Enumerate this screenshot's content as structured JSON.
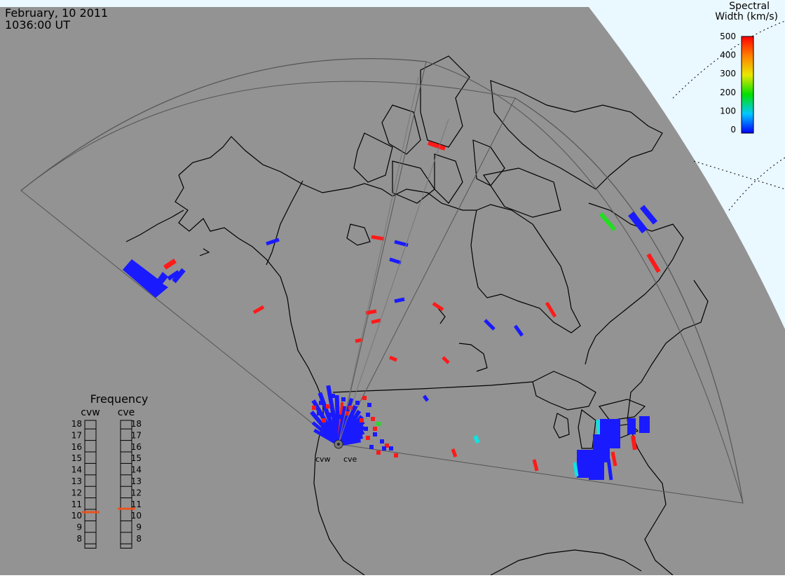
{
  "header": {
    "date": "February, 10 2011",
    "time": "1036:00 UT"
  },
  "colorbar": {
    "title_line1": "Spectral",
    "title_line2": "Width (km/s)",
    "ticks": [
      "500",
      "400",
      "300",
      "200",
      "100",
      "0"
    ]
  },
  "frequency_panel": {
    "title": "Frequency",
    "left_label": "cvw",
    "right_label": "cve",
    "levels": [
      "18",
      "17",
      "16",
      "15",
      "14",
      "13",
      "12",
      "11",
      "10",
      "9",
      "8"
    ],
    "cvw_value": 10.5,
    "cve_value": 10.8,
    "marker_color": "#e8531e"
  },
  "radars": {
    "west_label": "cvw",
    "east_label": "cve"
  },
  "colors": {
    "ocean": "#939393",
    "outside": "#eaf8ff",
    "fov_line": "#555555",
    "coast": "#000000",
    "echo_low": "#1a1aff",
    "echo_cyan": "#14e0e0",
    "echo_green": "#22dd22",
    "echo_high": "#ff1a1a"
  }
}
